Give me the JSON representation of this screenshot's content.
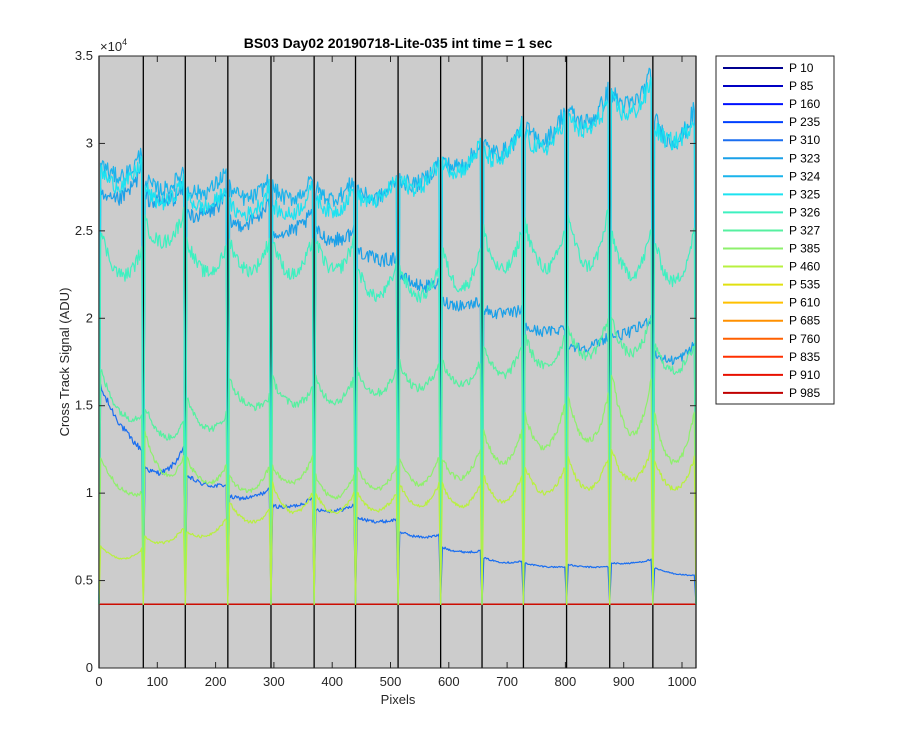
{
  "chart_data": {
    "type": "line",
    "title": "BS03 Day02 20190718-Lite-035 int time = 1 sec",
    "xlabel": "Pixels",
    "ylabel": "Cross Track Signal (ADU)",
    "y_exponent_label": "×10",
    "y_exponent_power": "4",
    "xlim": [
      0,
      1024
    ],
    "ylim": [
      0,
      35000
    ],
    "y_display_scale": 10000,
    "x_ticks": [
      0,
      100,
      200,
      300,
      400,
      500,
      600,
      700,
      800,
      900,
      1000
    ],
    "y_ticks": [
      0,
      5000,
      10000,
      15000,
      20000,
      25000,
      30000,
      35000
    ],
    "y_tick_labels": [
      "0",
      "0.5",
      "1",
      "1.5",
      "2",
      "2.5",
      "3",
      "3.5"
    ],
    "background": "#cccccc",
    "grid": false,
    "legend_position": "outside-right",
    "channel_boundaries": [
      0,
      76,
      148,
      221,
      295,
      369,
      440,
      513,
      586,
      657,
      728,
      802,
      876,
      950,
      1024
    ],
    "baseline": 3650,
    "series": [
      {
        "name": "P 10",
        "color": "#00008f",
        "segment_values": []
      },
      {
        "name": "P 85",
        "color": "#0000c4",
        "segment_values": []
      },
      {
        "name": "P 160",
        "color": "#0010ff",
        "segment_values": []
      },
      {
        "name": "P 235",
        "color": "#0040ff",
        "segment_values": []
      },
      {
        "name": "P 310",
        "color": "#1a6ef0",
        "segment_values": [
          [
            16000,
            13500,
            12500
          ],
          [
            11500,
            10500,
            12500
          ],
          [
            11000,
            10200,
            10500
          ],
          [
            9800,
            9500,
            10200
          ],
          [
            9300,
            9000,
            9700
          ],
          [
            9100,
            8800,
            9300
          ],
          [
            8600,
            8200,
            8500
          ],
          [
            7800,
            7300,
            7600
          ],
          [
            6900,
            6500,
            6700
          ],
          [
            6300,
            5900,
            6100
          ],
          [
            6000,
            5700,
            5800
          ],
          [
            5900,
            5700,
            5800
          ],
          [
            6000,
            5900,
            6200
          ],
          [
            5700,
            5300,
            5300
          ],
          [
            5100,
            4900,
            5000
          ]
        ]
      },
      {
        "name": "P 323",
        "color": "#1aa0e8",
        "segment_values": [
          [
            27000,
            26000,
            28500
          ],
          [
            27000,
            26000,
            27500
          ],
          [
            26000,
            25500,
            27000
          ],
          [
            25500,
            25000,
            26500
          ],
          [
            25000,
            24500,
            26000
          ],
          [
            25000,
            24000,
            25000
          ],
          [
            24000,
            23000,
            23500
          ],
          [
            22500,
            21500,
            22000
          ],
          [
            21000,
            20500,
            21000
          ],
          [
            20500,
            20000,
            20500
          ],
          [
            19500,
            19000,
            19500
          ],
          [
            18500,
            18000,
            19000
          ],
          [
            19000,
            19000,
            20000
          ],
          [
            18000,
            17000,
            18500
          ],
          [
            17000,
            16500,
            16500
          ]
        ]
      },
      {
        "name": "P 324",
        "color": "#1ab4ec",
        "segment_values": [
          [
            29000,
            27000,
            29500
          ],
          [
            28000,
            26500,
            28500
          ],
          [
            27500,
            26500,
            28500
          ],
          [
            27500,
            26000,
            28000
          ],
          [
            27500,
            26000,
            28000
          ],
          [
            27500,
            26000,
            28000
          ],
          [
            27500,
            26000,
            28000
          ],
          [
            28000,
            27000,
            29000
          ],
          [
            29000,
            28000,
            30000
          ],
          [
            30000,
            28500,
            31000
          ],
          [
            31000,
            29000,
            32000
          ],
          [
            32000,
            30000,
            33000
          ],
          [
            33000,
            31000,
            34000
          ],
          [
            31500,
            28500,
            32000
          ],
          [
            30000,
            28000,
            30500
          ]
        ]
      },
      {
        "name": "P 325",
        "color": "#1ce2f0",
        "segment_values": [
          [
            28500,
            26500,
            29000
          ],
          [
            27500,
            25500,
            28000
          ],
          [
            27000,
            25500,
            27500
          ],
          [
            26500,
            25000,
            27500
          ],
          [
            26500,
            25000,
            27500
          ],
          [
            27000,
            25000,
            27500
          ],
          [
            27000,
            26000,
            28000
          ],
          [
            28000,
            26500,
            29000
          ],
          [
            29000,
            27500,
            30000
          ],
          [
            29500,
            28000,
            31000
          ],
          [
            30500,
            28500,
            31500
          ],
          [
            31500,
            29500,
            32500
          ],
          [
            32500,
            30500,
            33500
          ],
          [
            31000,
            29000,
            31500
          ],
          [
            30000,
            28000,
            30500
          ]
        ]
      },
      {
        "name": "P 326",
        "color": "#3ef0c0",
        "segment_values": [
          [
            25000,
            20500,
            24000
          ],
          [
            25500,
            23000,
            26000
          ],
          [
            24500,
            21000,
            24000
          ],
          [
            24500,
            21000,
            24500
          ],
          [
            24500,
            20500,
            24500
          ],
          [
            24500,
            21000,
            24500
          ],
          [
            23000,
            19500,
            23000
          ],
          [
            23000,
            19500,
            23000
          ],
          [
            24000,
            19500,
            24000
          ],
          [
            25000,
            20500,
            25000
          ],
          [
            25500,
            20500,
            25000
          ],
          [
            26000,
            20000,
            26000
          ],
          [
            25000,
            20000,
            25000
          ],
          [
            24500,
            19500,
            25000
          ],
          [
            25500,
            20500,
            25500
          ]
        ]
      },
      {
        "name": "P 327",
        "color": "#56f0a0",
        "segment_values": [
          [
            17000,
            13500,
            14500
          ],
          [
            15000,
            12000,
            14000
          ],
          [
            15500,
            12500,
            14500
          ],
          [
            16500,
            14000,
            15500
          ],
          [
            16500,
            14000,
            16000
          ],
          [
            16500,
            14000,
            16500
          ],
          [
            17000,
            14500,
            17000
          ],
          [
            17500,
            14500,
            17500
          ],
          [
            17500,
            15000,
            17500
          ],
          [
            18500,
            15000,
            18500
          ],
          [
            19000,
            15500,
            19000
          ],
          [
            19500,
            16000,
            20000
          ],
          [
            20000,
            16000,
            20000
          ],
          [
            18500,
            15500,
            18500
          ],
          [
            18000,
            15500,
            18500
          ]
        ]
      },
      {
        "name": "P 385",
        "color": "#8ef06c",
        "segment_values": [
          [
            12000,
            9500,
            10000
          ],
          [
            13500,
            9500,
            12000
          ],
          [
            12000,
            9500,
            11500
          ],
          [
            11000,
            9000,
            11500
          ],
          [
            11500,
            9500,
            12000
          ],
          [
            11000,
            8500,
            11000
          ],
          [
            11500,
            9000,
            11500
          ],
          [
            12000,
            9000,
            12000
          ],
          [
            12000,
            9500,
            12500
          ],
          [
            13500,
            10000,
            13500
          ],
          [
            14500,
            10500,
            15000
          ],
          [
            15500,
            10500,
            15500
          ],
          [
            17000,
            10000,
            16500
          ],
          [
            14500,
            9000,
            14500
          ],
          [
            13500,
            9000,
            13500
          ]
        ]
      },
      {
        "name": "P 460",
        "color": "#b8f040",
        "segment_values": [
          [
            7000,
            5600,
            6800
          ],
          [
            7500,
            6600,
            8000
          ],
          [
            7800,
            7000,
            8500
          ],
          [
            9500,
            7500,
            9000
          ],
          [
            10500,
            7600,
            10000
          ],
          [
            10000,
            7800,
            10000
          ],
          [
            10000,
            8000,
            10000
          ],
          [
            10500,
            8000,
            10500
          ],
          [
            10500,
            8000,
            10500
          ],
          [
            11000,
            8000,
            11000
          ],
          [
            11500,
            8500,
            11500
          ],
          [
            12000,
            8500,
            12000
          ],
          [
            12500,
            9000,
            12500
          ],
          [
            12000,
            8500,
            12000
          ],
          [
            12000,
            8500,
            12000
          ]
        ]
      },
      {
        "name": "P 535",
        "color": "#e0e010",
        "segment_values": []
      },
      {
        "name": "P 610",
        "color": "#ffc000",
        "segment_values": []
      },
      {
        "name": "P 685",
        "color": "#ff9000",
        "segment_values": []
      },
      {
        "name": "P 760",
        "color": "#ff6000",
        "segment_values": []
      },
      {
        "name": "P 835",
        "color": "#ff3000",
        "segment_values": []
      },
      {
        "name": "P 910",
        "color": "#e81000",
        "segment_values": []
      },
      {
        "name": "P 985",
        "color": "#c00000",
        "segment_values": []
      }
    ]
  }
}
